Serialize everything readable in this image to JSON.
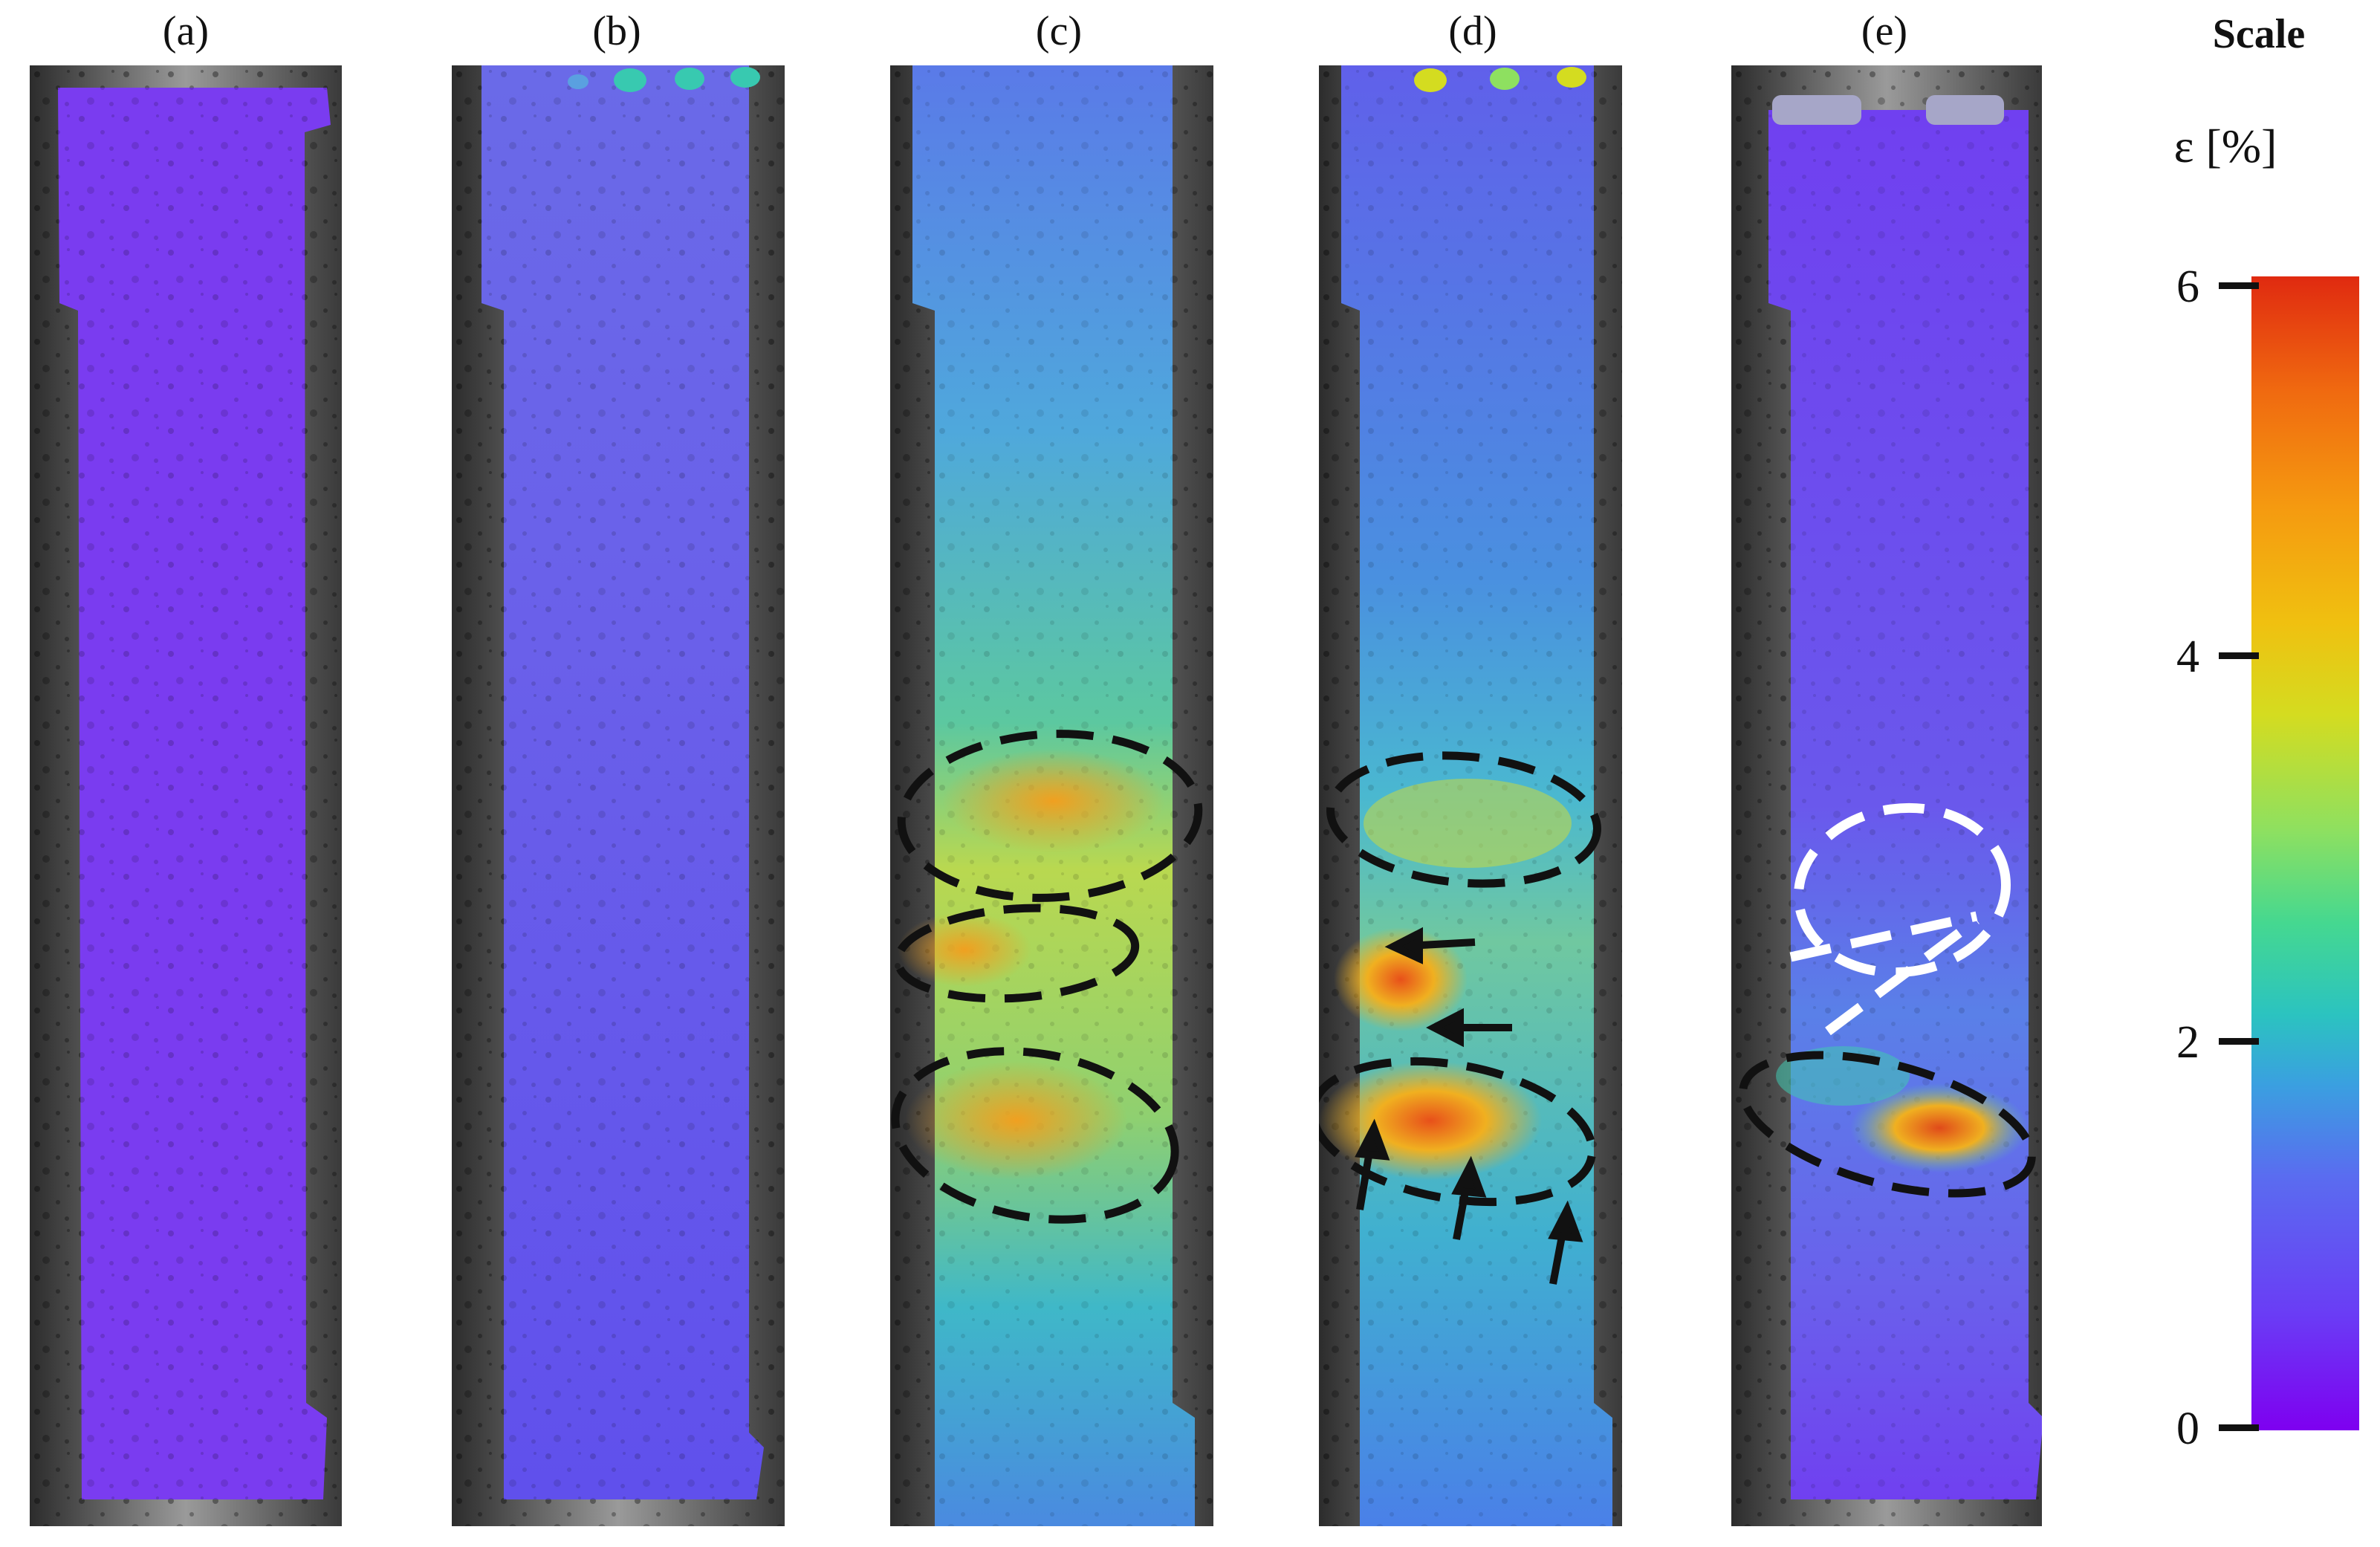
{
  "panels": [
    {
      "id": "a",
      "label": "(a)",
      "field": "violet"
    },
    {
      "id": "b",
      "label": "(b)",
      "field": "blue-violet"
    },
    {
      "id": "c",
      "label": "(c)",
      "field": "teal-green"
    },
    {
      "id": "d",
      "label": "(d)",
      "field": "blue-orange"
    },
    {
      "id": "e",
      "label": "(e)",
      "field": "violet-cracked"
    }
  ],
  "scale": {
    "title": "Scale",
    "unit": "ε [%]",
    "ticks": [
      "6",
      "4",
      "2",
      "0"
    ],
    "range": [
      0,
      6
    ],
    "colors": {
      "low": "#7e00f0",
      "mid": "#2bc3c0",
      "high_mid": "#d4dc20",
      "high": "#e02a10"
    }
  }
}
